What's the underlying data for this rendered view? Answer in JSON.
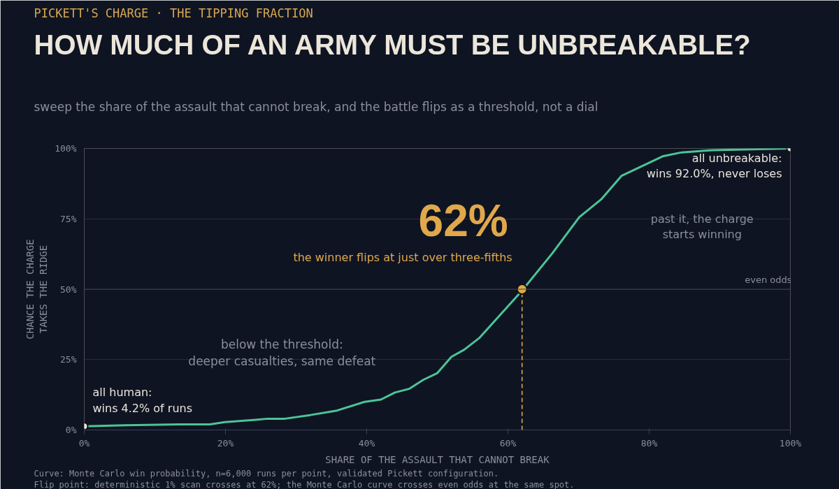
{
  "chart_data": {
    "type": "line",
    "title": "HOW MUCH OF AN ARMY MUST BE UNBREAKABLE?",
    "subtitle": "sweep the share of the assault that cannot break, and the battle flips as a threshold, not a dial",
    "xlabel": "SHARE OF THE ASSAULT THAT CANNOT BREAK",
    "ylabel": "CHANCE THE CHARGE\nTAKES THE RIDGE",
    "xlim": [
      0,
      100
    ],
    "ylim": [
      0,
      100
    ],
    "xticks": [
      {
        "value": 0,
        "label": "0%"
      },
      {
        "value": 20,
        "label": "20%"
      },
      {
        "value": 40,
        "label": "40%"
      },
      {
        "value": 60,
        "label": "60%"
      },
      {
        "value": 80,
        "label": "80%"
      },
      {
        "value": 100,
        "label": "100%"
      }
    ],
    "yticks": [
      {
        "value": 0,
        "label": "0%"
      },
      {
        "value": 25,
        "label": "25%"
      },
      {
        "value": 50,
        "label": "50%"
      },
      {
        "value": 75,
        "label": "75%"
      },
      {
        "value": 100,
        "label": "100%"
      }
    ],
    "grid": "y",
    "series": [
      {
        "type": "line",
        "color": "#4cc497",
        "line_style": "solid",
        "marker": "none",
        "x": [
          0,
          5.8,
          13.9,
          17.8,
          19.9,
          24.2,
          26,
          28.4,
          32,
          35.8,
          39.7,
          42,
          44,
          46,
          48,
          50,
          52,
          53.8,
          56,
          58.7,
          62,
          66.3,
          70.1,
          73.2,
          76.1,
          78.4,
          81.9,
          84.6,
          89.1,
          100
        ],
        "values": [
          1.3,
          1.7,
          2.0,
          2.0,
          2.8,
          3.6,
          4.0,
          4.0,
          5.3,
          6.9,
          10.0,
          10.8,
          13.3,
          14.6,
          17.8,
          20.2,
          26,
          28.5,
          32.8,
          40.3,
          49.5,
          62.8,
          75.6,
          81.9,
          90.3,
          93,
          97.2,
          98.6,
          99.4,
          100
        ]
      },
      {
        "type": "line",
        "color": "#e0a84a",
        "line_style": "dashed",
        "marker": "none",
        "x": [
          62,
          62
        ],
        "values": [
          0,
          50
        ]
      },
      {
        "type": "scatter",
        "color": "#e0a84a",
        "marker": "circle",
        "x": [
          62
        ],
        "values": [
          50
        ]
      },
      {
        "type": "scatter",
        "color": "#e8e4dc",
        "marker": "circle",
        "x": [
          0,
          100
        ],
        "values": [
          1.3,
          100
        ]
      }
    ],
    "ref_lines": [
      {
        "axis": "y",
        "value": 50,
        "label": "even odds",
        "color": "#3a4258"
      }
    ],
    "annotations": [
      {
        "text": "62%",
        "x": 62,
        "y": 50
      },
      {
        "text": "the winner flips at just over three-fifths",
        "x": 62,
        "y": 50
      },
      {
        "text": "all human:\nwins 4.2% of runs",
        "x": 0,
        "y": 1.3
      },
      {
        "text": "all unbreakable:\nwins 92.0%, never loses",
        "x": 100,
        "y": 100
      },
      "below the threshold:\ndeeper casualties, same defeat",
      "past it, the charge\nstarts winning",
      "PICKETT'S CHARGE · THE TIPPING FRACTION",
      "Curve: Monte Carlo win probability, n=6,000 runs per point, validated Pickett configuration.",
      "Flip point: deterministic 1% scan crosses at 62%; the Monte Carlo curve crosses even odds at the same spot."
    ]
  }
}
